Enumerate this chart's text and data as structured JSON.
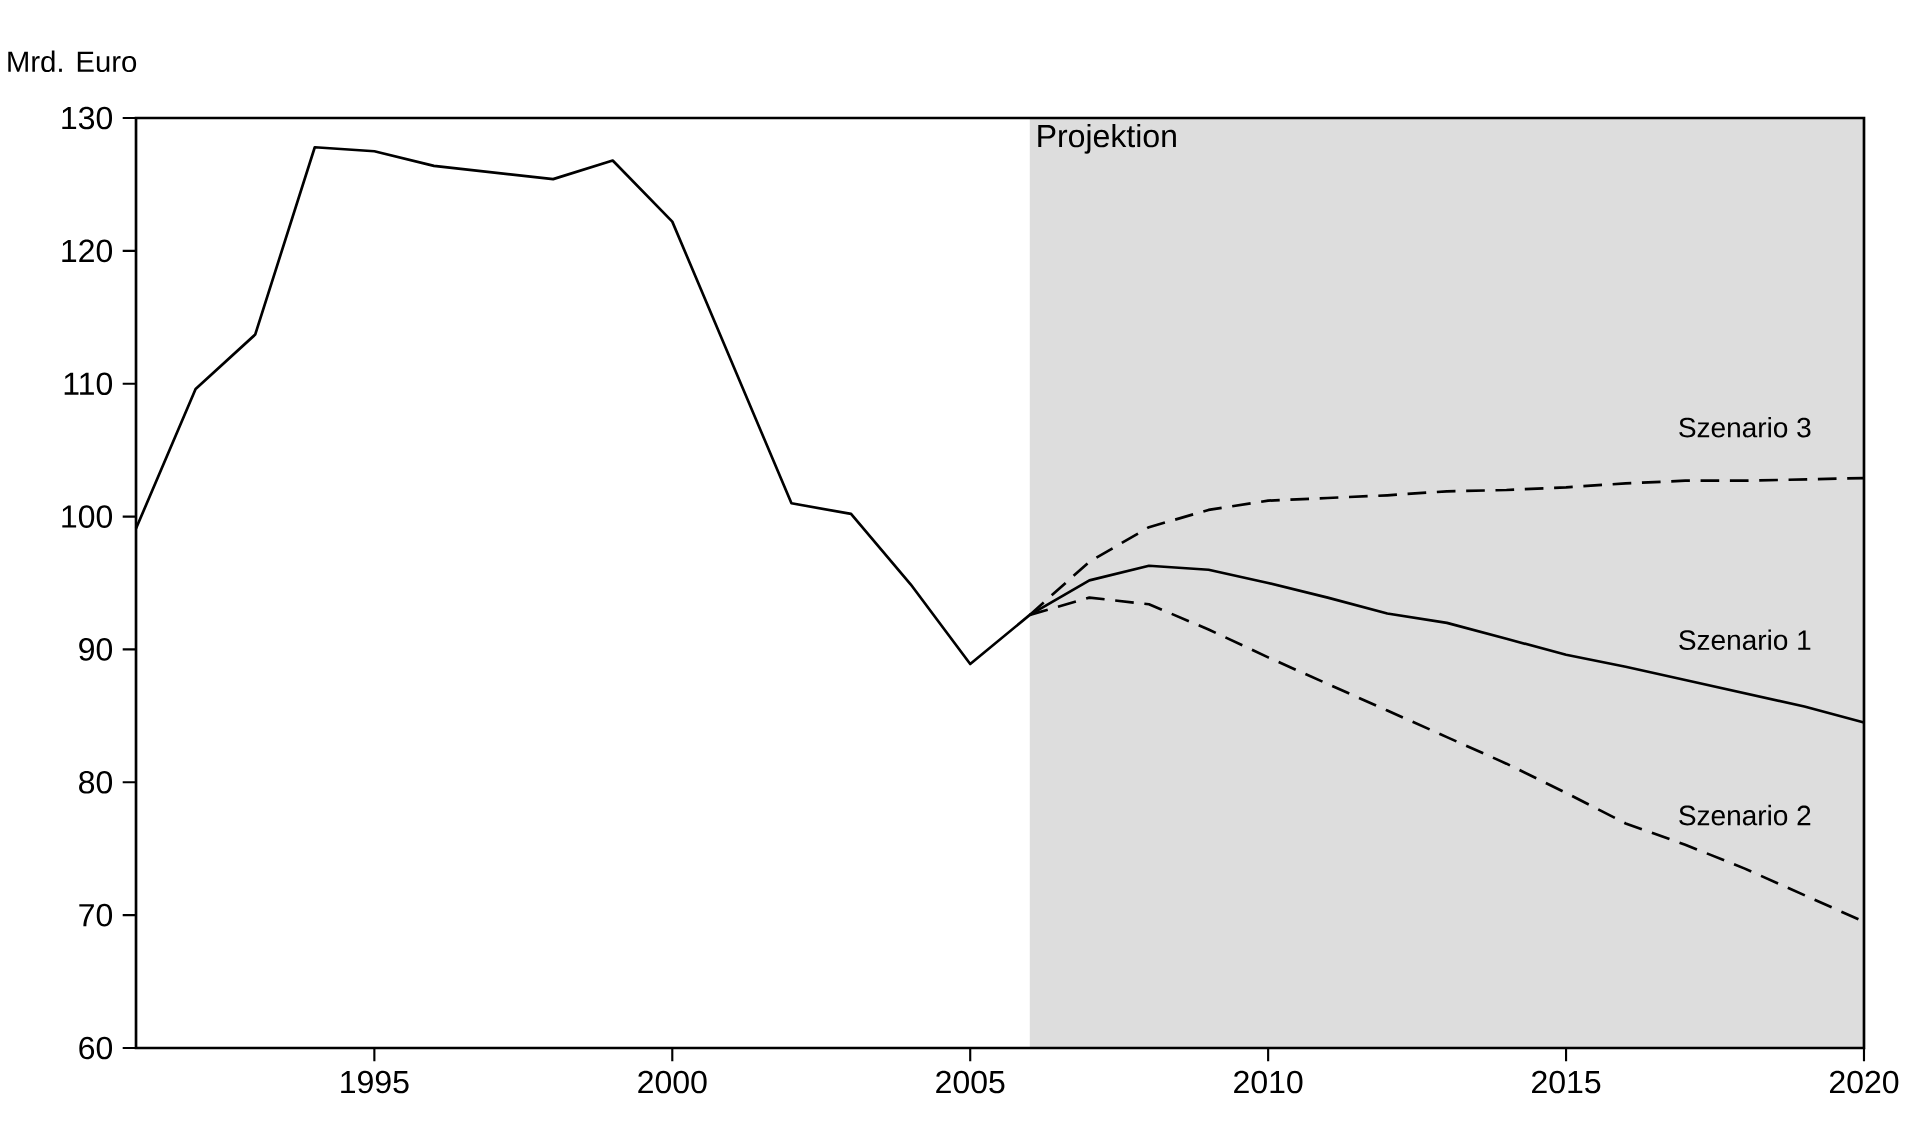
{
  "chart_data": {
    "type": "line",
    "ylabel": "Mrd. Euro",
    "xlim": [
      1991,
      2020
    ],
    "xticks": [
      1995,
      2000,
      2005,
      2010,
      2015,
      2020
    ],
    "ylim": [
      60,
      130
    ],
    "yticks": [
      60,
      70,
      80,
      90,
      100,
      110,
      120,
      130
    ],
    "grid": false,
    "marker": "none",
    "bands": [
      {
        "axis": "x",
        "from": 2006,
        "to": 2020,
        "label": "Projektion",
        "color": "#dddddd"
      }
    ],
    "series": [
      {
        "name": "Szenario 1",
        "color": "#000000",
        "line_style": "solid",
        "x": [
          1991,
          1992,
          1993,
          1994,
          1995,
          1996,
          1997,
          1998,
          1999,
          2000,
          2001,
          2002,
          2003,
          2004,
          2005,
          2006,
          2007,
          2008,
          2009,
          2010,
          2011,
          2012,
          2013,
          2014,
          2015,
          2016,
          2017,
          2018,
          2019,
          2020
        ],
        "values": [
          99.1,
          109.6,
          113.7,
          127.8,
          127.5,
          126.4,
          125.9,
          125.4,
          126.8,
          122.2,
          111.6,
          101.0,
          100.2,
          94.9,
          88.9,
          92.6,
          95.2,
          96.3,
          96.0,
          95.0,
          93.9,
          92.7,
          92.0,
          90.8,
          89.6,
          88.7,
          87.7,
          86.7,
          85.7,
          84.5
        ]
      },
      {
        "name": "Szenario 2",
        "color": "#000000",
        "line_style": "dashed",
        "x": [
          2006,
          2007,
          2008,
          2009,
          2010,
          2011,
          2012,
          2013,
          2014,
          2015,
          2016,
          2017,
          2018,
          2019,
          2020
        ],
        "values": [
          92.6,
          93.9,
          93.4,
          91.5,
          89.4,
          87.4,
          85.4,
          83.4,
          81.4,
          79.2,
          76.9,
          75.3,
          73.5,
          71.5,
          69.5
        ]
      },
      {
        "name": "Szenario 3",
        "color": "#000000",
        "line_style": "dashed",
        "x": [
          2006,
          2007,
          2008,
          2009,
          2010,
          2011,
          2012,
          2013,
          2014,
          2015,
          2016,
          2017,
          2018,
          2019,
          2020
        ],
        "values": [
          92.6,
          96.6,
          99.2,
          100.5,
          101.2,
          101.4,
          101.6,
          101.9,
          102.0,
          102.2,
          102.5,
          102.7,
          102.7,
          102.8,
          102.9
        ]
      }
    ]
  }
}
